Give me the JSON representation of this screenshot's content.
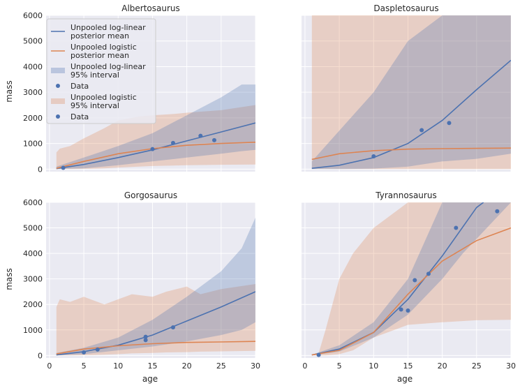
{
  "figure": {
    "ylabel": "mass",
    "xlabel": "age"
  },
  "legend": {
    "location": "upper left",
    "entries": [
      {
        "kind": "line",
        "color": "#4c72b0",
        "lines": [
          "Unpooled log-linear",
          "posterior mean"
        ]
      },
      {
        "kind": "line",
        "color": "#dd8452",
        "lines": [
          "Unpooled logistic",
          "posterior mean"
        ]
      },
      {
        "kind": "band",
        "color": "#4c72b0",
        "lines": [
          "Unpooled log-linear",
          "95% interval"
        ]
      },
      {
        "kind": "dot",
        "color": "#4c72b0",
        "lines": [
          "Data"
        ]
      },
      {
        "kind": "band",
        "color": "#dd8452",
        "lines": [
          "Unpooled logistic",
          "95% interval"
        ]
      },
      {
        "kind": "dot",
        "color": "#4c72b0",
        "lines": [
          "Data"
        ]
      }
    ]
  },
  "colors": {
    "background": "#eaeaf2",
    "grid": "#ffffff",
    "loglinear": "#4c72b0",
    "logistic": "#dd8452",
    "data": "#4c72b0"
  },
  "chart_data": [
    {
      "type": "line",
      "title": "Albertosaurus",
      "xlim": [
        -0.5,
        30
      ],
      "ylim": [
        -100,
        6000
      ],
      "xticks": [
        0,
        5,
        10,
        15,
        20,
        25,
        30
      ],
      "yticks": [
        0,
        1000,
        2000,
        3000,
        4000,
        5000,
        6000
      ],
      "data_points": [
        {
          "x": 2,
          "y": 50
        },
        {
          "x": 15,
          "y": 780
        },
        {
          "x": 18,
          "y": 1020
        },
        {
          "x": 22,
          "y": 1300
        },
        {
          "x": 24,
          "y": 1130
        }
      ],
      "loglinear_mean": {
        "x": [
          1,
          5,
          10,
          15,
          20,
          25,
          30
        ],
        "y": [
          20,
          180,
          450,
          750,
          1100,
          1450,
          1800
        ]
      },
      "logistic_mean": {
        "x": [
          1,
          5,
          10,
          15,
          20,
          25,
          30
        ],
        "y": [
          30,
          300,
          600,
          800,
          930,
          1000,
          1050
        ]
      },
      "loglinear_band": {
        "x": [
          1,
          5,
          10,
          15,
          20,
          25,
          28,
          30
        ],
        "lower": [
          0,
          30,
          150,
          300,
          450,
          600,
          700,
          750
        ],
        "upper": [
          100,
          450,
          900,
          1400,
          2100,
          2800,
          3300,
          3300
        ]
      },
      "logistic_band": {
        "x": [
          1,
          1.5,
          3,
          5,
          8,
          10,
          13,
          15,
          18,
          20,
          25,
          30
        ],
        "lower": [
          0,
          0,
          0,
          10,
          30,
          60,
          100,
          120,
          140,
          150,
          170,
          180
        ],
        "upper": [
          650,
          800,
          900,
          1200,
          1600,
          1900,
          2050,
          2100,
          2150,
          2200,
          2300,
          2500
        ]
      }
    },
    {
      "type": "line",
      "title": "Daspletosaurus",
      "xlim": [
        -0.5,
        30
      ],
      "ylim": [
        -100,
        6000
      ],
      "xticks": [
        0,
        5,
        10,
        15,
        20,
        25,
        30
      ],
      "yticks": [
        0,
        1000,
        2000,
        3000,
        4000,
        5000,
        6000
      ],
      "data_points": [
        {
          "x": 10,
          "y": 500
        },
        {
          "x": 17,
          "y": 1520
        },
        {
          "x": 21,
          "y": 1800
        }
      ],
      "loglinear_mean": {
        "x": [
          1,
          5,
          10,
          15,
          20,
          25,
          30
        ],
        "y": [
          30,
          150,
          450,
          1000,
          1900,
          3100,
          4250
        ]
      },
      "logistic_mean": {
        "x": [
          1,
          5,
          10,
          15,
          20,
          25,
          30
        ],
        "y": [
          380,
          600,
          720,
          780,
          800,
          810,
          820
        ]
      },
      "loglinear_band": {
        "x": [
          1,
          5,
          10,
          15,
          20,
          25,
          30
        ],
        "lower": [
          0,
          0,
          20,
          100,
          300,
          400,
          600
        ],
        "upper": [
          300,
          1500,
          3000,
          5000,
          6000,
          6000,
          6000
        ]
      },
      "logistic_band": {
        "x": [
          1,
          2,
          5,
          10,
          15,
          20,
          25,
          30
        ],
        "lower": [
          0,
          0,
          0,
          0,
          0,
          0,
          0,
          0
        ],
        "upper": [
          6000,
          6000,
          6000,
          6000,
          6000,
          6000,
          6000,
          6000
        ]
      }
    },
    {
      "type": "line",
      "title": "Gorgosaurus",
      "xlim": [
        -0.5,
        30
      ],
      "ylim": [
        -100,
        6000
      ],
      "xticks": [
        0,
        5,
        10,
        15,
        20,
        25,
        30
      ],
      "yticks": [
        0,
        1000,
        2000,
        3000,
        4000,
        5000,
        6000
      ],
      "data_points": [
        {
          "x": 5,
          "y": 120
        },
        {
          "x": 7,
          "y": 230
        },
        {
          "x": 14,
          "y": 600
        },
        {
          "x": 14,
          "y": 730
        },
        {
          "x": 18,
          "y": 1100
        }
      ],
      "loglinear_mean": {
        "x": [
          1,
          5,
          10,
          15,
          20,
          25,
          30
        ],
        "y": [
          20,
          150,
          400,
          800,
          1350,
          1900,
          2500
        ]
      },
      "logistic_mean": {
        "x": [
          1,
          5,
          10,
          15,
          20,
          25,
          30
        ],
        "y": [
          60,
          250,
          380,
          460,
          510,
          530,
          550
        ]
      },
      "loglinear_band": {
        "x": [
          1,
          5,
          10,
          15,
          20,
          25,
          28,
          30
        ],
        "lower": [
          0,
          50,
          200,
          350,
          550,
          800,
          1000,
          1300
        ],
        "upper": [
          100,
          300,
          700,
          1400,
          2300,
          3300,
          4200,
          5400
        ]
      },
      "logistic_band": {
        "x": [
          1,
          1.5,
          3,
          5,
          8,
          10,
          12,
          15,
          17,
          20,
          22,
          25,
          30
        ],
        "lower": [
          0,
          0,
          0,
          10,
          30,
          50,
          80,
          100,
          120,
          130,
          150,
          160,
          180
        ],
        "upper": [
          1900,
          2200,
          2100,
          2300,
          2000,
          2200,
          2400,
          2300,
          2500,
          2700,
          2400,
          2600,
          2800
        ]
      }
    },
    {
      "type": "line",
      "title": "Tyrannosaurus",
      "xlim": [
        -0.5,
        30
      ],
      "ylim": [
        -100,
        6000
      ],
      "xticks": [
        0,
        5,
        10,
        15,
        20,
        25,
        30
      ],
      "yticks": [
        0,
        1000,
        2000,
        3000,
        4000,
        5000,
        6000
      ],
      "data_points": [
        {
          "x": 2,
          "y": 20
        },
        {
          "x": 14,
          "y": 1800
        },
        {
          "x": 15,
          "y": 1760
        },
        {
          "x": 16,
          "y": 2950
        },
        {
          "x": 18,
          "y": 3200
        },
        {
          "x": 22,
          "y": 5000
        },
        {
          "x": 28,
          "y": 5650
        }
      ],
      "loglinear_mean": {
        "x": [
          1,
          5,
          10,
          15,
          20,
          25,
          26
        ],
        "y": [
          20,
          250,
          900,
          2200,
          3900,
          5800,
          6000
        ]
      },
      "logistic_mean": {
        "x": [
          1,
          5,
          10,
          15,
          20,
          25,
          30
        ],
        "y": [
          20,
          200,
          900,
          2400,
          3700,
          4500,
          5000
        ]
      },
      "loglinear_band": {
        "x": [
          1,
          5,
          10,
          15,
          20,
          23,
          30
        ],
        "lower": [
          0,
          150,
          700,
          1600,
          3000,
          4000,
          6000
        ],
        "upper": [
          30,
          400,
          1300,
          3000,
          6000,
          6000,
          6000
        ]
      },
      "logistic_band": {
        "x": [
          1,
          2,
          3,
          5,
          7,
          10,
          15,
          20,
          25,
          30
        ],
        "lower": [
          0,
          0,
          0,
          50,
          200,
          700,
          1200,
          1300,
          1380,
          1400
        ],
        "upper": [
          0,
          100,
          1000,
          3000,
          4000,
          5000,
          6000,
          6000,
          6000,
          6000
        ]
      }
    }
  ]
}
